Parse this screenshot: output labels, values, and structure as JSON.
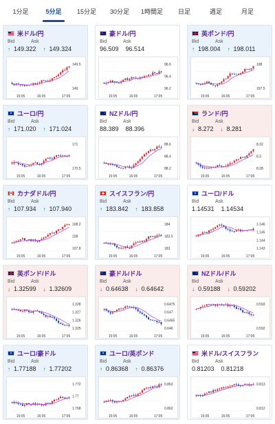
{
  "tabs": [
    "1分足",
    "5分足",
    "15分足",
    "30分足",
    "1時間足",
    "日足",
    "週足",
    "月足"
  ],
  "active_tab": 1,
  "labels": {
    "bid": "Bid",
    "ask": "Ask"
  },
  "x_ticks": [
    "15:05",
    "16:05",
    "17:05"
  ],
  "colors": {
    "bull": "#d0202a",
    "bear": "#1a3fb0",
    "ma": "#b74fd6"
  },
  "cards": [
    {
      "pair": "米ドル/円",
      "flag": "us",
      "bid": "149.322",
      "ask": "149.324",
      "dir": "up",
      "trend": "up",
      "y_ticks": [
        "149.5",
        "149"
      ]
    },
    {
      "pair": "豪ドル/円",
      "flag": "au",
      "bid": "96.509",
      "ask": "96.514",
      "dir": "flat",
      "trend": "up",
      "y_ticks": [
        "96.6",
        "96.4",
        "96.2"
      ]
    },
    {
      "pair": "英ポンド/円",
      "flag": "gb",
      "bid": "198.004",
      "ask": "198.011",
      "dir": "up",
      "trend": "up",
      "y_ticks": [
        "198",
        "197.5"
      ]
    },
    {
      "pair": "ユーロ/円",
      "flag": "eu",
      "bid": "171.020",
      "ask": "171.024",
      "dir": "up",
      "trend": "up",
      "y_ticks": [
        "171",
        "170.5"
      ]
    },
    {
      "pair": "NZドル/円",
      "flag": "nz",
      "bid": "88.389",
      "ask": "88.396",
      "dir": "flat",
      "trend": "up",
      "y_ticks": [
        "88.6",
        "88.4",
        "88.2"
      ]
    },
    {
      "pair": "ランド/円",
      "flag": "za",
      "bid": "8.272",
      "ask": "8.281",
      "dir": "down",
      "trend": "up",
      "y_ticks": [
        "8.32",
        "8.3",
        "8.28"
      ]
    },
    {
      "pair": "カナダドル/円",
      "flag": "ca",
      "bid": "107.934",
      "ask": "107.940",
      "dir": "up",
      "trend": "up",
      "y_ticks": [
        "108.2",
        "108",
        "107.8"
      ]
    },
    {
      "pair": "スイスフラン/円",
      "flag": "ch",
      "bid": "183.842",
      "ask": "183.858",
      "dir": "up",
      "trend": "up",
      "y_ticks": [
        "184",
        "183.5",
        "183"
      ]
    },
    {
      "pair": "ユーロ/ドル",
      "flag": "eu",
      "bid": "1.14531",
      "ask": "1.14534",
      "dir": "flat",
      "trend": "flat",
      "y_ticks": [
        "1.146",
        "1.145",
        "1.144",
        "1.143"
      ]
    },
    {
      "pair": "英ポンド/ドル",
      "flag": "gb",
      "bid": "1.32599",
      "ask": "1.32609",
      "dir": "down",
      "trend": "down",
      "y_ticks": [
        "1.328",
        "1.327",
        "1.326",
        "1.325"
      ]
    },
    {
      "pair": "豪ドル/ドル",
      "flag": "au",
      "bid": "0.64638",
      "ask": "0.64642",
      "dir": "down",
      "trend": "down",
      "y_ticks": [
        "0.6475",
        "0.647",
        "0.6465",
        "0.646"
      ]
    },
    {
      "pair": "NZドル/ドル",
      "flag": "nz",
      "bid": "0.59188",
      "ask": "0.59202",
      "dir": "down",
      "trend": "down",
      "y_ticks": [
        "0.593",
        "0.592"
      ]
    },
    {
      "pair": "ユーロ/豪ドル",
      "flag": "eu",
      "bid": "1.77188",
      "ask": "1.77202",
      "dir": "up",
      "trend": "up",
      "y_ticks": [
        "1.772",
        "1.77",
        "1.768"
      ]
    },
    {
      "pair": "ユーロ/英ポンド",
      "flag": "eu",
      "bid": "0.86368",
      "ask": "0.86376",
      "dir": "up",
      "trend": "up",
      "y_ticks": [
        "0.863",
        "0.862"
      ]
    },
    {
      "pair": "米ドル/スイスフラン",
      "flag": "us",
      "bid": "0.81203",
      "ask": "0.81218",
      "dir": "flat",
      "trend": "flat",
      "y_ticks": [
        "0.813",
        "0.812"
      ]
    }
  ]
}
